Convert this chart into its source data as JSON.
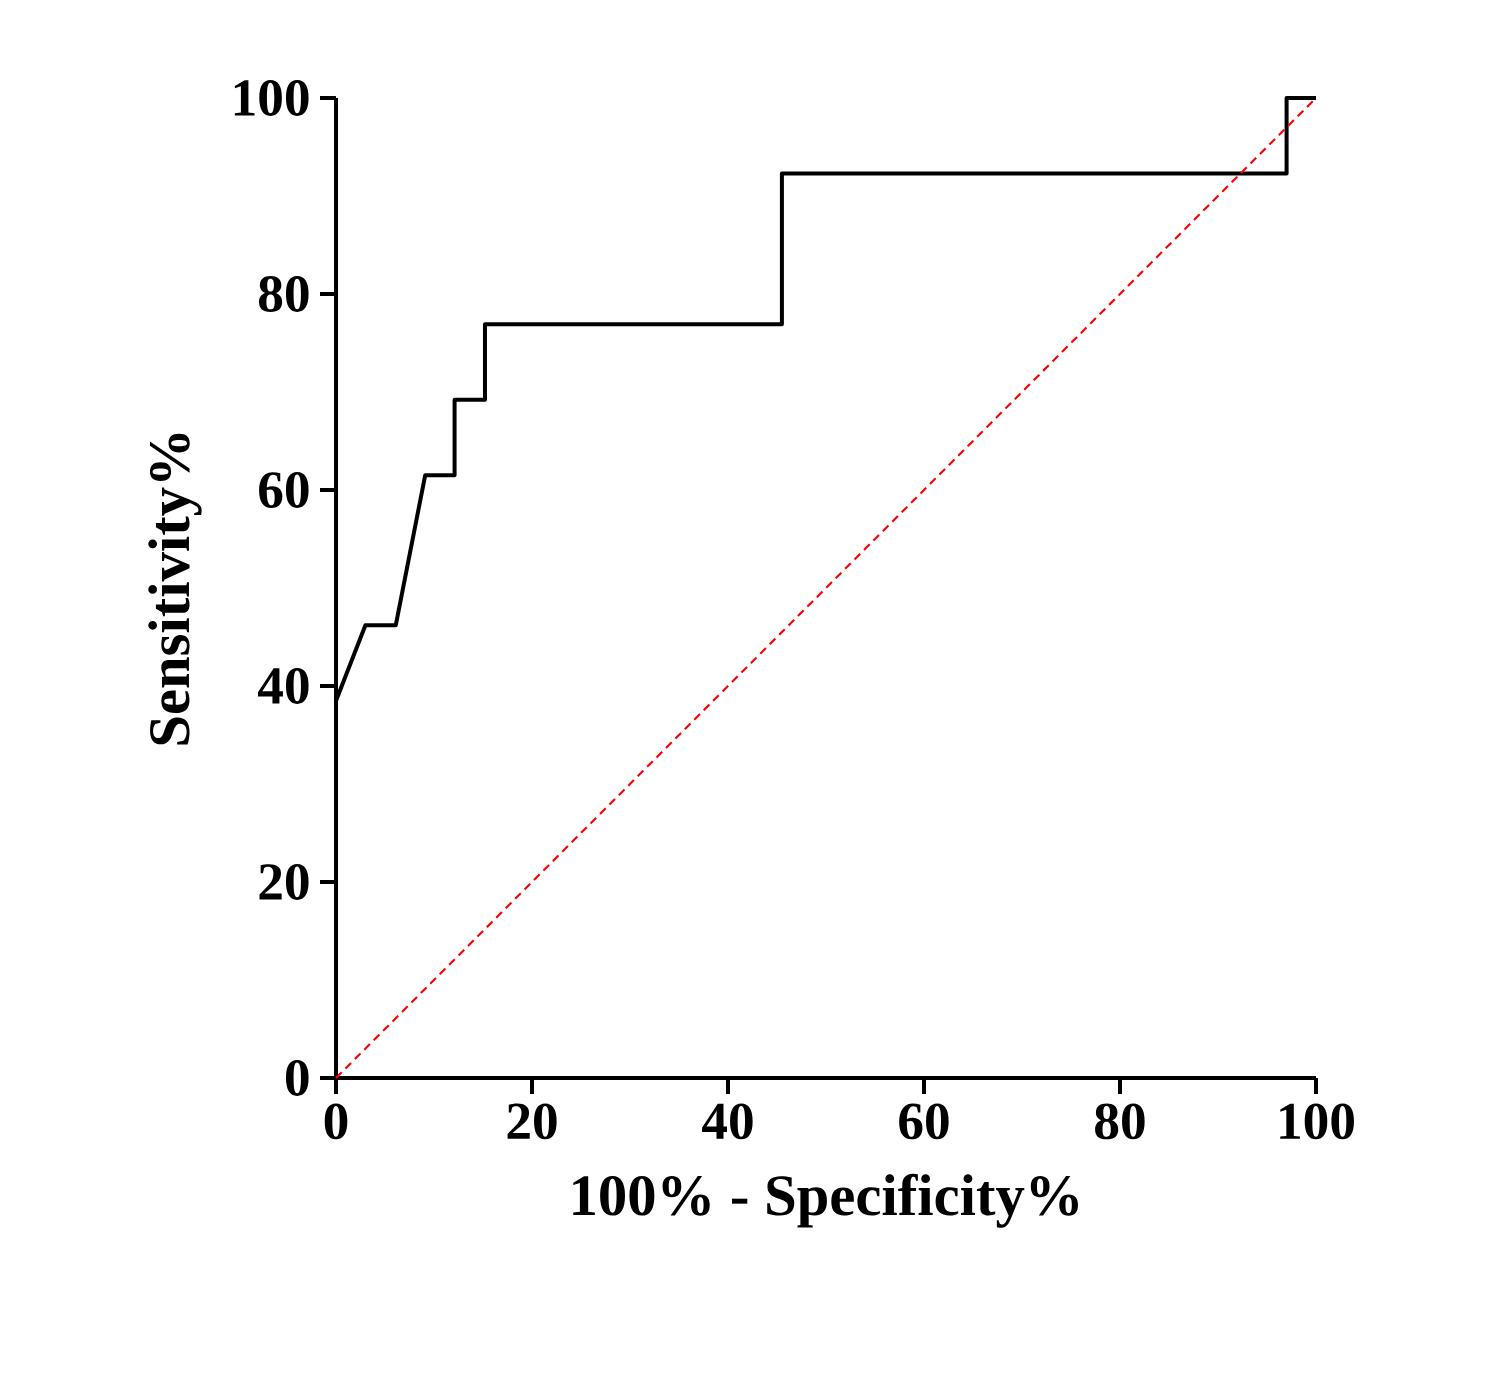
{
  "chart_data": {
    "type": "line",
    "xlabel": "100% - Specificity%",
    "ylabel": "Sensitivity%",
    "xlim": [
      0,
      100
    ],
    "ylim": [
      0,
      100
    ],
    "xticks": [
      0,
      20,
      40,
      60,
      80,
      100
    ],
    "yticks": [
      0,
      20,
      40,
      60,
      80,
      100
    ],
    "marker": "none",
    "series": [
      {
        "color": "#000000",
        "line_style": "solid",
        "x": [
          0,
          3,
          6.1,
          9.1,
          12.1,
          12.1,
          15.2,
          15.2,
          45.5,
          45.5,
          97,
          97,
          100
        ],
        "values": [
          38.5,
          46.2,
          46.2,
          61.5,
          61.5,
          69.2,
          69.2,
          76.9,
          76.9,
          92.3,
          92.3,
          100,
          100
        ]
      },
      {
        "color": "#ff0000",
        "line_style": "dashed",
        "x": [
          0,
          100
        ],
        "values": [
          0,
          100
        ]
      }
    ]
  }
}
